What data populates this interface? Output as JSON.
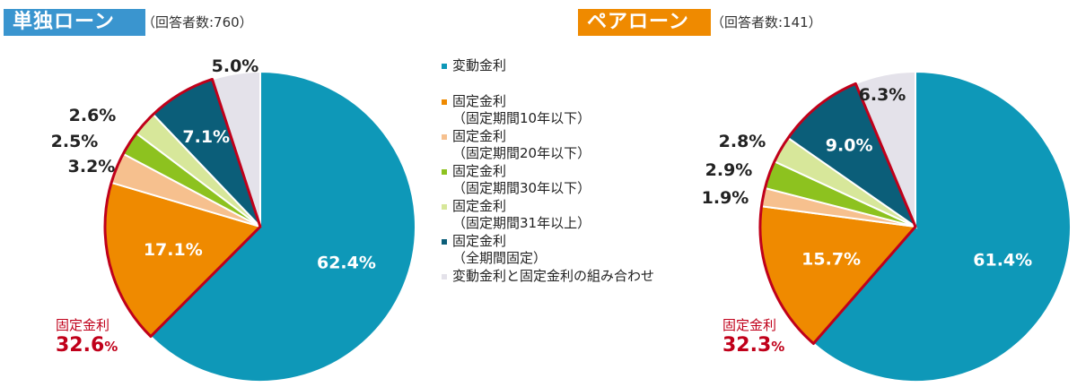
{
  "colors": {
    "variable": "#0e98b8",
    "fixed10": "#ef8a00",
    "fixed20": "#f6c08e",
    "fixed30": "#8dc21f",
    "fixed31": "#d7e79a",
    "full": "#0b5e79",
    "mixed": "#e4e2ea",
    "highlight": "#c0001a"
  },
  "left": {
    "title": "単独ローン",
    "respondents": "（回答者数:760）",
    "fixed_total_label": "固定金利",
    "fixed_total_value": "32.6",
    "fixed_total_unit": "%"
  },
  "right": {
    "title": "ペアローン",
    "respondents": "（回答者数:141）",
    "fixed_total_label": "固定金利",
    "fixed_total_value": "32.3",
    "fixed_total_unit": "%"
  },
  "legend": [
    {
      "key": "variable",
      "line1": "変動金利",
      "line2": ""
    },
    {
      "key": "fixed10",
      "line1": "固定金利",
      "line2": "（固定期間10年以下）"
    },
    {
      "key": "fixed20",
      "line1": "固定金利",
      "line2": "（固定期間20年以下）"
    },
    {
      "key": "fixed30",
      "line1": "固定金利",
      "line2": "（固定期間30年以下）"
    },
    {
      "key": "fixed31",
      "line1": "固定金利",
      "line2": "（固定期間31年以上）"
    },
    {
      "key": "full",
      "line1": "固定金利",
      "line2": "（全期間固定）"
    },
    {
      "key": "mixed",
      "line1": "変動金利と固定金利の組み合わせ",
      "line2": ""
    }
  ],
  "chart_data": [
    {
      "type": "pie",
      "title": "単独ローン",
      "subtitle": "（回答者数:760）",
      "categories": [
        "変動金利",
        "固定金利（固定期間10年以下）",
        "固定金利（固定期間20年以下）",
        "固定金利（固定期間30年以下）",
        "固定金利（固定期間31年以上）",
        "固定金利（全期間固定）",
        "変動金利と固定金利の組み合わせ"
      ],
      "values": [
        62.4,
        17.1,
        3.2,
        2.5,
        2.6,
        7.1,
        5.0
      ],
      "labels": [
        "62.4%",
        "17.1%",
        "3.2%",
        "2.5%",
        "2.6%",
        "7.1%",
        "5.0%"
      ],
      "legend": "center"
    },
    {
      "type": "pie",
      "title": "ペアローン",
      "subtitle": "（回答者数:141）",
      "categories": [
        "変動金利",
        "固定金利（固定期間10年以下）",
        "固定金利（固定期間20年以下）",
        "固定金利（固定期間30年以下）",
        "固定金利（固定期間31年以上）",
        "固定金利（全期間固定）",
        "変動金利と固定金利の組み合わせ"
      ],
      "values": [
        61.4,
        15.7,
        1.9,
        2.9,
        2.8,
        9.0,
        6.3
      ],
      "labels": [
        "61.4%",
        "15.7%",
        "1.9%",
        "2.9%",
        "2.8%",
        "9.0%",
        "6.3%"
      ],
      "legend": "center"
    }
  ]
}
